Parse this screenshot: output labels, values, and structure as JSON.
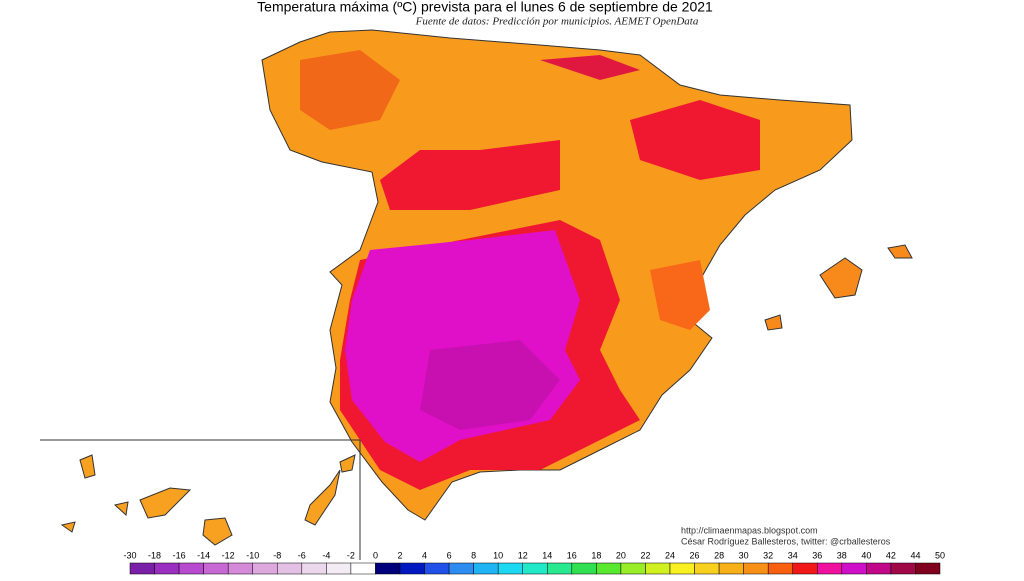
{
  "header": {
    "title": "Temperatura máxima (ºC) prevista para el lunes 6 de septiembre de 2021",
    "subtitle": "Fuente de datos: Predicción por municipios. AEMET OpenData"
  },
  "credits": [
    "http://climaenmapas.blogspot.com",
    "César Rodríguez Ballesteros, twitter: @crballesteros"
  ],
  "legend": {
    "ticks": [
      -30,
      -18,
      -16,
      -14,
      -12,
      -10,
      -8,
      -6,
      -4,
      -2,
      0,
      2,
      4,
      6,
      8,
      10,
      12,
      14,
      16,
      18,
      20,
      22,
      24,
      26,
      28,
      30,
      32,
      34,
      36,
      38,
      40,
      42,
      44,
      50
    ],
    "colors": [
      "#7a1fa8",
      "#9a2fc0",
      "#b84ad0",
      "#c868d4",
      "#d48ad8",
      "#dca8de",
      "#e4c0e4",
      "#ecd8ec",
      "#f4ecf4",
      "#ffffff",
      "#00007a",
      "#0018c0",
      "#2050e8",
      "#2c8cf0",
      "#20b4f4",
      "#1cd8f0",
      "#20e8c8",
      "#28e890",
      "#30e050",
      "#58e830",
      "#98ec28",
      "#d0f020",
      "#f8f020",
      "#f8d020",
      "#f8b018",
      "#f89018",
      "#f86010",
      "#f01818",
      "#f010a0",
      "#d010c8",
      "#c00888",
      "#a00848",
      "#800020"
    ]
  }
}
